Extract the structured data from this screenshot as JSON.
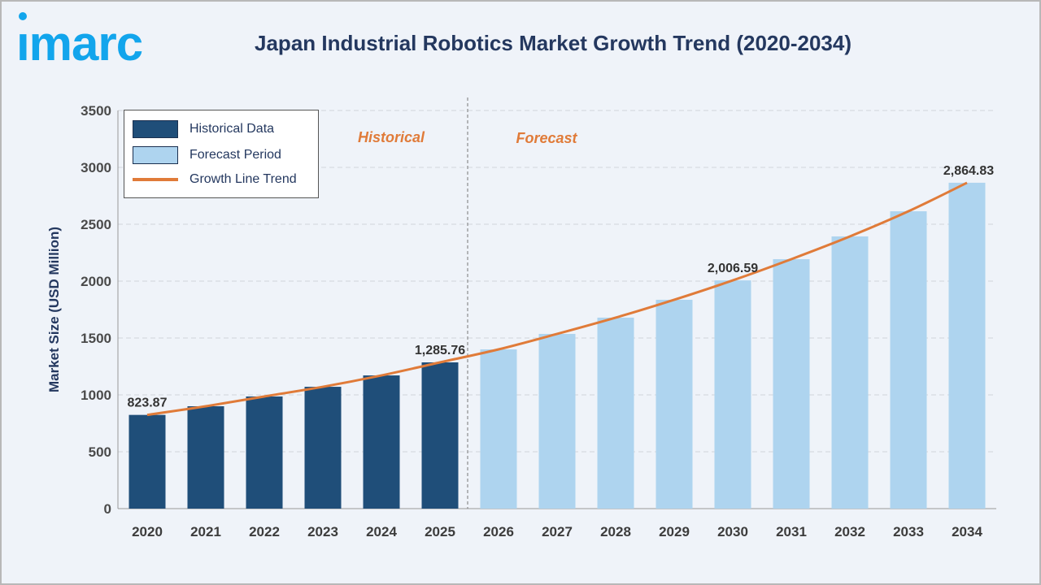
{
  "brand": {
    "logo_text": "imarc",
    "logo_color": "#12a5ec"
  },
  "chart_data": {
    "type": "bar",
    "title": "Japan Industrial Robotics Market Growth Trend (2020-2034)",
    "ylabel": "Market Size (USD Million)",
    "xlabel": "",
    "ylim": [
      0,
      3500
    ],
    "yticks": [
      0,
      500,
      1000,
      1500,
      2000,
      2500,
      3000,
      3500
    ],
    "grid": true,
    "legend_position": "top-left",
    "categories": [
      "2020",
      "2021",
      "2022",
      "2023",
      "2024",
      "2025",
      "2026",
      "2027",
      "2028",
      "2029",
      "2030",
      "2031",
      "2032",
      "2033",
      "2034"
    ],
    "values": [
      823.87,
      900,
      986,
      1071,
      1171,
      1285.76,
      1400,
      1536,
      1679,
      1836,
      2006.59,
      2193,
      2393,
      2614,
      2864.83
    ],
    "phase": [
      "historical",
      "historical",
      "historical",
      "historical",
      "historical",
      "historical",
      "forecast",
      "forecast",
      "forecast",
      "forecast",
      "forecast",
      "forecast",
      "forecast",
      "forecast",
      "forecast"
    ],
    "data_labels": [
      {
        "category": "2020",
        "text": "823.87"
      },
      {
        "category": "2025",
        "text": "1,285.76"
      },
      {
        "category": "2030",
        "text": "2,006.59"
      },
      {
        "category": "2034",
        "text": "2,864.83"
      }
    ],
    "phase_labels": {
      "historical": "Historical",
      "forecast": "Forecast"
    },
    "legend": [
      {
        "label": "Historical Data",
        "kind": "bar",
        "color": "#1f4e79"
      },
      {
        "label": "Forecast Period",
        "kind": "bar",
        "color": "#aed4ef"
      },
      {
        "label": "Growth Line Trend",
        "kind": "line",
        "color": "#e07b39"
      }
    ],
    "colors": {
      "historical": "#1f4e79",
      "forecast": "#aed4ef",
      "trend": "#e07b39"
    }
  }
}
